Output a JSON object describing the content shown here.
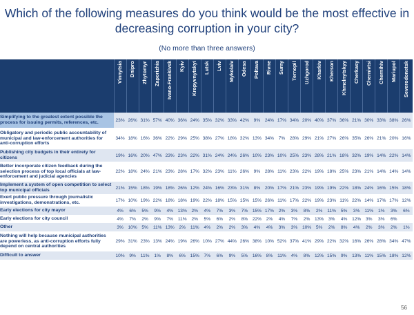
{
  "title": "Which of the following measures do you think would be the most effective in decreasing corruption in your city?",
  "subtitle": "(No more than three answers)",
  "cities": [
    "Vinnytsia",
    "Dnipro",
    "Zhytomyr",
    "Zaporizhia",
    "Ivano-Frankivsk",
    "Kyiv",
    "Kropyvnytskyi",
    "Lutsk",
    "Lviv",
    "Mykolaiv",
    "Odesa",
    "Poltava",
    "Rivne",
    "Sumy",
    "Ternopil",
    "Uzhgorod",
    "Kharkiv",
    "Kherson",
    "Khmelnytskyy",
    "Cherkasy",
    "Chernivtsi",
    "Chernihiv",
    "Mariupol",
    "Severodonetsk"
  ],
  "rows": [
    {
      "label": "Simplifying to the greatest extent possible the process for issuing permits, references, etc.",
      "values": [
        "23%",
        "26%",
        "31%",
        "57%",
        "40%",
        "36%",
        "24%",
        "35%",
        "32%",
        "33%",
        "42%",
        "9%",
        "24%",
        "17%",
        "34%",
        "20%",
        "40%",
        "37%",
        "36%",
        "21%",
        "30%",
        "33%",
        "38%",
        "26%"
      ]
    },
    {
      "label": "Obligatory and periodic public accountability of municipal and law-enforcement authorities for anti-corruption efforts",
      "values": [
        "34%",
        "18%",
        "16%",
        "36%",
        "22%",
        "29%",
        "25%",
        "38%",
        "27%",
        "18%",
        "32%",
        "13%",
        "34%",
        "7%",
        "28%",
        "29%",
        "21%",
        "27%",
        "26%",
        "35%",
        "26%",
        "21%",
        "20%",
        "16%"
      ]
    },
    {
      "label": "Publishing city budgets in their entirety for citizens",
      "values": [
        "19%",
        "16%",
        "20%",
        "47%",
        "23%",
        "23%",
        "22%",
        "31%",
        "24%",
        "24%",
        "26%",
        "10%",
        "23%",
        "10%",
        "25%",
        "23%",
        "28%",
        "21%",
        "18%",
        "32%",
        "19%",
        "14%",
        "22%",
        "14%"
      ]
    },
    {
      "label": "Better incorporate citizen feedback during the selection process of top local officials at law-enforcement and judicial agencies",
      "values": [
        "22%",
        "18%",
        "24%",
        "21%",
        "23%",
        "28%",
        "17%",
        "32%",
        "23%",
        "11%",
        "26%",
        "9%",
        "28%",
        "11%",
        "23%",
        "22%",
        "19%",
        "18%",
        "25%",
        "23%",
        "21%",
        "14%",
        "14%",
        "14%"
      ]
    },
    {
      "label": "Implement a system of open competition to select top municipal officials",
      "values": [
        "21%",
        "15%",
        "18%",
        "19%",
        "18%",
        "26%",
        "12%",
        "24%",
        "16%",
        "23%",
        "31%",
        "8%",
        "20%",
        "17%",
        "21%",
        "23%",
        "19%",
        "19%",
        "22%",
        "18%",
        "24%",
        "16%",
        "15%",
        "18%"
      ]
    },
    {
      "label": "Exert public pressure through journalistic investigations, demonstrations, etc.",
      "values": [
        "17%",
        "10%",
        "19%",
        "22%",
        "18%",
        "18%",
        "19%",
        "22%",
        "18%",
        "15%",
        "15%",
        "15%",
        "26%",
        "11%",
        "17%",
        "22%",
        "19%",
        "23%",
        "11%",
        "22%",
        "14%",
        "17%",
        "17%",
        "12%"
      ]
    },
    {
      "label": "Early elections for city mayor",
      "values": [
        "4%",
        "6%",
        "5%",
        "9%",
        "4%",
        "13%",
        "2%",
        "4%",
        "7%",
        "3%",
        "7%",
        "15%",
        "17%",
        "2%",
        "3%",
        "8%",
        "2%",
        "11%",
        "5%",
        "3%",
        "11%",
        "1%",
        "3%",
        "6%"
      ]
    },
    {
      "label": "Early elections for city council",
      "values": [
        "4%",
        "7%",
        "2%",
        "9%",
        "7%",
        "11%",
        "2%",
        "5%",
        "6%",
        "2%",
        "8%",
        "22%",
        "2%",
        "4%",
        "7%",
        "2%",
        "13%",
        "3%",
        "4%",
        "12%",
        "3%",
        "3%",
        "6%",
        ""
      ]
    },
    {
      "label": "Other",
      "values": [
        "3%",
        "10%",
        "5%",
        "11%",
        "13%",
        "2%",
        "11%",
        "4%",
        "2%",
        "2%",
        "3%",
        "4%",
        "4%",
        "3%",
        "3%",
        "10%",
        "5%",
        "2%",
        "8%",
        "4%",
        "2%",
        "3%",
        "2%",
        "1%"
      ]
    },
    {
      "label": "Nothing will help because municipal authorities are powerless, as anti-corruption efforts fully depend on central authorities",
      "values": [
        "29%",
        "31%",
        "23%",
        "13%",
        "24%",
        "19%",
        "26%",
        "10%",
        "27%",
        "44%",
        "26%",
        "38%",
        "10%",
        "52%",
        "37%",
        "41%",
        "29%",
        "22%",
        "32%",
        "16%",
        "26%",
        "28%",
        "34%",
        "47%"
      ]
    },
    {
      "label": "Difficult to answer",
      "values": [
        "10%",
        "9%",
        "11%",
        "1%",
        "8%",
        "6%",
        "15%",
        "7%",
        "6%",
        "9%",
        "5%",
        "16%",
        "8%",
        "11%",
        "4%",
        "8%",
        "12%",
        "15%",
        "9%",
        "13%",
        "11%",
        "15%",
        "18%",
        "12%"
      ]
    }
  ],
  "page_number": "56",
  "colors": {
    "header_bg": "#1b3d6e",
    "text": "#1e3f7a",
    "band": "#dfe6f1",
    "highlight": "#a8c4e4"
  }
}
